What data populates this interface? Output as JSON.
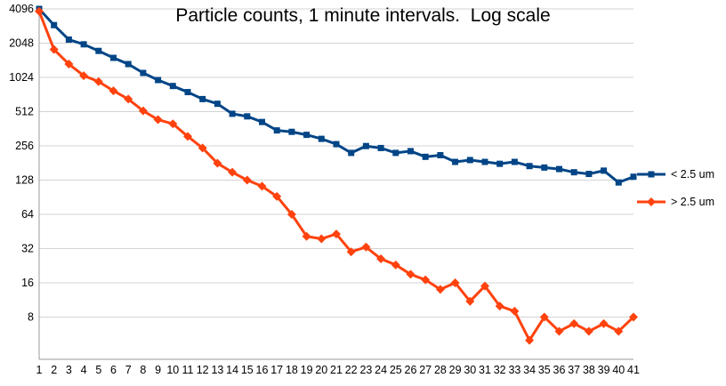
{
  "colors": {
    "grid": "#d3d3d3",
    "axis": "#9a9a9a",
    "text": "#000000"
  },
  "chart_data": {
    "type": "line",
    "title": "Particle counts, 1 minute intervals.  Log scale",
    "y_scale": "log2",
    "grid": "horizontal",
    "legend_position": "right",
    "y_ticks": [
      4096,
      2048,
      1024,
      512,
      256,
      128,
      64,
      32,
      16,
      8
    ],
    "ylim": [
      3.4,
      4096
    ],
    "xlim": [
      1,
      41
    ],
    "x": [
      1,
      2,
      3,
      4,
      5,
      6,
      7,
      8,
      9,
      10,
      11,
      12,
      13,
      14,
      15,
      16,
      17,
      18,
      19,
      20,
      21,
      22,
      23,
      24,
      25,
      26,
      27,
      28,
      29,
      30,
      31,
      32,
      33,
      34,
      35,
      36,
      37,
      38,
      39,
      40,
      41
    ],
    "series": [
      {
        "name": "< 2.5 um",
        "marker": "square",
        "color": "#004586",
        "values": [
          4096,
          2950,
          2200,
          2000,
          1750,
          1520,
          1340,
          1120,
          970,
          860,
          760,
          660,
          600,
          490,
          465,
          415,
          350,
          340,
          320,
          295,
          265,
          222,
          255,
          245,
          222,
          230,
          205,
          212,
          185,
          192,
          185,
          178,
          185,
          170,
          165,
          160,
          150,
          145,
          155,
          122,
          137
        ]
      },
      {
        "name": "> 2.5 um",
        "marker": "diamond",
        "color": "#FF420E",
        "values": [
          3900,
          1800,
          1340,
          1060,
          940,
          780,
          660,
          520,
          435,
          400,
          310,
          245,
          180,
          150,
          128,
          113,
          92,
          64,
          41,
          39,
          43,
          30,
          33,
          26,
          23,
          19,
          17,
          14,
          16,
          11,
          15,
          10,
          9,
          5,
          8,
          6,
          7,
          6,
          7,
          6,
          8
        ]
      }
    ]
  }
}
